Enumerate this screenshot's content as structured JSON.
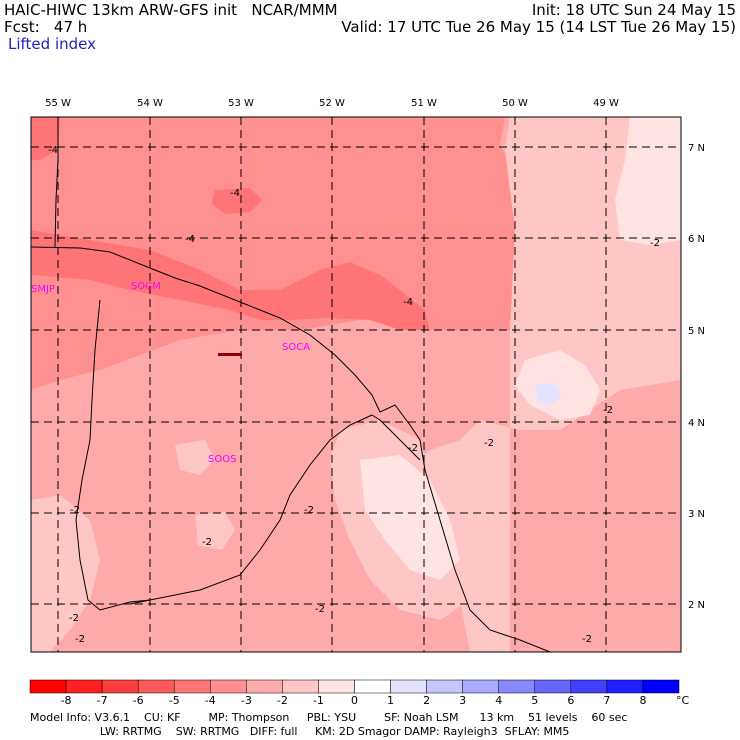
{
  "header": {
    "model_line": "HAIC-HIWC 13km ARW-GFS init   NCAR/MMM",
    "fcst_line": "Fcst:   47 h",
    "field_name": "Lifted index",
    "init_line": "Init: 18 UTC Sun 24 May 15",
    "valid_line": "Valid: 17 UTC Tue 26 May 15 (14 LST Tue 26 May 15)"
  },
  "map": {
    "longitude_labels": [
      "55 W",
      "54 W",
      "53 W",
      "52 W",
      "51 W",
      "50 W",
      "49 W"
    ],
    "latitude_labels": [
      "7 N",
      "6 N",
      "5 N",
      "4 N",
      "3 N",
      "2 N"
    ],
    "station_labels": [
      "SMJP",
      "SOCM",
      "SOCA",
      "SOOS"
    ],
    "contour_labels": [
      "-4",
      "-4",
      "-4",
      "-4",
      "-2",
      "-2",
      "-2",
      "-2",
      "-2",
      "-2",
      "-2",
      "-2",
      "-2",
      "-2",
      "-2"
    ]
  },
  "colorbar": {
    "ticks": [
      "-8",
      "-7",
      "-6",
      "-5",
      "-4",
      "-3",
      "-2",
      "-1",
      "0",
      "1",
      "2",
      "3",
      "4",
      "5",
      "6",
      "7",
      "8"
    ],
    "unit": "°C",
    "colors": [
      "#ff0000",
      "#ff2020",
      "#ff3f3f",
      "#ff5a5a",
      "#ff7575",
      "#ff9090",
      "#ffaaaa",
      "#ffc6c6",
      "#ffe3e3",
      "#ffffff",
      "#e3e3ff",
      "#c6c6ff",
      "#aaaaff",
      "#8888ff",
      "#6666ff",
      "#4040ff",
      "#1f1fff",
      "#0000ff"
    ]
  },
  "footer": {
    "line1": "Model Info: V3.6.1    CU: KF        MP: Thompson     PBL: YSU        SF: Noah LSM      13 km    51 levels    60 sec",
    "line2": "                    LW: RRTMG    SW: RRTMG   DIFF: full     KM: 2D Smagor DAMP: Rayleigh3  SFLAY: MM5"
  }
}
